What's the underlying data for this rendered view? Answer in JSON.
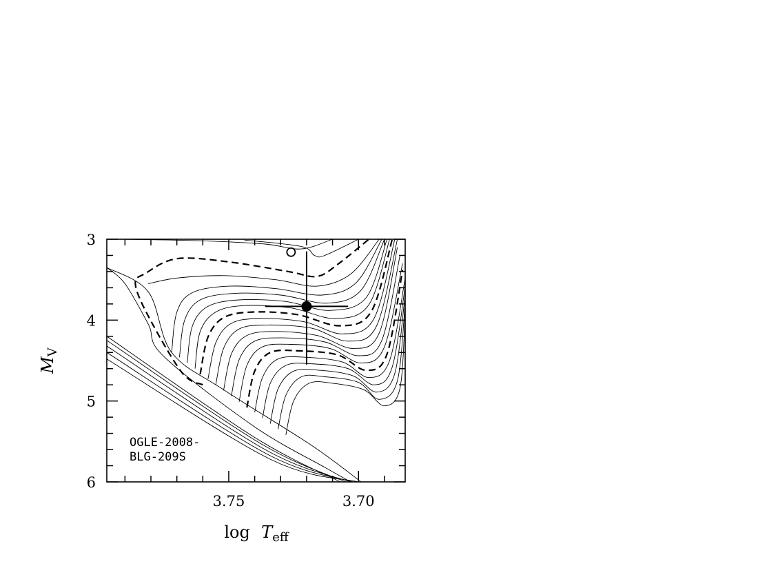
{
  "chart_data": {
    "type": "line",
    "x_axis": {
      "var": "log",
      "symbol": "T",
      "subscript": "eff",
      "lim": [
        3.797,
        3.682
      ],
      "reversed": true,
      "ticks": [
        3.75,
        3.7
      ],
      "tick_labels": [
        "3.75",
        "3.70"
      ]
    },
    "y_axis": {
      "symbol": "M",
      "subscript": "V",
      "lim": [
        3,
        6
      ],
      "inverted": true,
      "ticks": [
        3,
        4,
        5,
        6
      ],
      "tick_labels": [
        "3",
        "4",
        "5",
        "6"
      ]
    },
    "annotation": {
      "line1": "OGLE-2008-",
      "line2": "BLG-209S"
    },
    "solid_isochrones": [
      [
        [
          3.79,
          3.0
        ],
        [
          3.76,
          3.02
        ],
        [
          3.736,
          3.06
        ],
        [
          3.722,
          3.12
        ],
        [
          3.71,
          3.0
        ]
      ],
      [
        [
          3.744,
          3.01
        ],
        [
          3.722,
          3.09
        ],
        [
          3.717,
          3.2
        ],
        [
          3.713,
          3.2
        ],
        [
          3.7,
          3.0
        ]
      ],
      [
        [
          3.781,
          3.55
        ],
        [
          3.77,
          3.48
        ],
        [
          3.752,
          3.45
        ],
        [
          3.732,
          3.5
        ],
        [
          3.716,
          3.58
        ],
        [
          3.703,
          3.43
        ],
        [
          3.692,
          3.0
        ]
      ],
      [
        [
          3.772,
          4.4
        ],
        [
          3.77,
          3.9
        ],
        [
          3.764,
          3.66
        ],
        [
          3.75,
          3.58
        ],
        [
          3.732,
          3.61
        ],
        [
          3.714,
          3.69
        ],
        [
          3.701,
          3.54
        ],
        [
          3.691,
          3.0
        ]
      ],
      [
        [
          3.769,
          4.46
        ],
        [
          3.767,
          4.0
        ],
        [
          3.761,
          3.75
        ],
        [
          3.748,
          3.67
        ],
        [
          3.73,
          3.69
        ],
        [
          3.712,
          3.79
        ],
        [
          3.699,
          3.63
        ],
        [
          3.69,
          3.0
        ]
      ],
      [
        [
          3.766,
          4.53
        ],
        [
          3.764,
          4.07
        ],
        [
          3.758,
          3.83
        ],
        [
          3.746,
          3.75
        ],
        [
          3.728,
          3.77
        ],
        [
          3.711,
          3.88
        ],
        [
          3.697,
          3.72
        ],
        [
          3.689,
          3.0
        ]
      ],
      [
        [
          3.763,
          4.6
        ],
        [
          3.761,
          4.14
        ],
        [
          3.755,
          3.9
        ],
        [
          3.744,
          3.82
        ],
        [
          3.726,
          3.85
        ],
        [
          3.709,
          3.98
        ],
        [
          3.696,
          3.81
        ],
        [
          3.688,
          3.0
        ]
      ],
      [
        [
          3.758,
          4.73
        ],
        [
          3.755,
          4.28
        ],
        [
          3.749,
          4.04
        ],
        [
          3.738,
          3.98
        ],
        [
          3.721,
          4.02
        ],
        [
          3.706,
          4.17
        ],
        [
          3.694,
          3.98
        ],
        [
          3.686,
          3.0
        ]
      ],
      [
        [
          3.755,
          4.8
        ],
        [
          3.752,
          4.35
        ],
        [
          3.746,
          4.11
        ],
        [
          3.735,
          4.06
        ],
        [
          3.718,
          4.1
        ],
        [
          3.704,
          4.26
        ],
        [
          3.693,
          4.07
        ],
        [
          3.685,
          3.0
        ]
      ],
      [
        [
          3.752,
          4.87
        ],
        [
          3.749,
          4.42
        ],
        [
          3.743,
          4.19
        ],
        [
          3.732,
          4.14
        ],
        [
          3.716,
          4.19
        ],
        [
          3.702,
          4.35
        ],
        [
          3.692,
          4.16
        ],
        [
          3.685,
          3.1
        ]
      ],
      [
        [
          3.749,
          4.94
        ],
        [
          3.746,
          4.49
        ],
        [
          3.74,
          4.26
        ],
        [
          3.729,
          4.22
        ],
        [
          3.713,
          4.27
        ],
        [
          3.7,
          4.44
        ],
        [
          3.691,
          4.25
        ],
        [
          3.684,
          3.2
        ]
      ],
      [
        [
          3.746,
          5.01
        ],
        [
          3.743,
          4.56
        ],
        [
          3.737,
          4.33
        ],
        [
          3.726,
          4.3
        ],
        [
          3.711,
          4.35
        ],
        [
          3.699,
          4.53
        ],
        [
          3.69,
          4.33
        ],
        [
          3.683,
          3.3
        ]
      ],
      [
        [
          3.74,
          5.14
        ],
        [
          3.737,
          4.71
        ],
        [
          3.731,
          4.48
        ],
        [
          3.72,
          4.46
        ],
        [
          3.706,
          4.52
        ],
        [
          3.696,
          4.71
        ],
        [
          3.688,
          4.5
        ],
        [
          3.682,
          3.48
        ]
      ],
      [
        [
          3.737,
          5.21
        ],
        [
          3.734,
          4.78
        ],
        [
          3.728,
          4.56
        ],
        [
          3.718,
          4.54
        ],
        [
          3.704,
          4.6
        ],
        [
          3.694,
          4.8
        ],
        [
          3.687,
          4.58
        ],
        [
          3.682,
          3.58
        ]
      ],
      [
        [
          3.734,
          5.28
        ],
        [
          3.731,
          4.85
        ],
        [
          3.725,
          4.63
        ],
        [
          3.715,
          4.62
        ],
        [
          3.702,
          4.69
        ],
        [
          3.693,
          4.89
        ],
        [
          3.686,
          4.66
        ],
        [
          3.682,
          3.68
        ]
      ],
      [
        [
          3.731,
          5.35
        ],
        [
          3.728,
          4.93
        ],
        [
          3.722,
          4.7
        ],
        [
          3.713,
          4.7
        ],
        [
          3.7,
          4.77
        ],
        [
          3.692,
          4.98
        ],
        [
          3.685,
          4.75
        ],
        [
          3.682,
          3.78
        ]
      ],
      [
        [
          3.728,
          5.42
        ],
        [
          3.725,
          5.0
        ],
        [
          3.719,
          4.78
        ],
        [
          3.71,
          4.78
        ],
        [
          3.698,
          4.86
        ],
        [
          3.69,
          5.06
        ],
        [
          3.684,
          4.84
        ],
        [
          3.682,
          3.9
        ]
      ]
    ],
    "dashed_isochrones": [
      [
        [
          3.76,
          4.8
        ],
        [
          3.768,
          4.65
        ],
        [
          3.781,
          3.95
        ],
        [
          3.786,
          3.55
        ],
        [
          3.782,
          3.42
        ],
        [
          3.77,
          3.24
        ],
        [
          3.75,
          3.28
        ],
        [
          3.727,
          3.4
        ],
        [
          3.716,
          3.46
        ],
        [
          3.708,
          3.31
        ],
        [
          3.696,
          3.0
        ]
      ],
      [
        [
          3.761,
          4.67
        ],
        [
          3.758,
          4.21
        ],
        [
          3.752,
          3.97
        ],
        [
          3.741,
          3.9
        ],
        [
          3.724,
          3.93
        ],
        [
          3.707,
          4.07
        ],
        [
          3.695,
          3.89
        ],
        [
          3.687,
          3.0
        ]
      ],
      [
        [
          3.743,
          5.08
        ],
        [
          3.74,
          4.63
        ],
        [
          3.734,
          4.4
        ],
        [
          3.723,
          4.38
        ],
        [
          3.708,
          4.43
        ],
        [
          3.697,
          4.62
        ],
        [
          3.689,
          4.42
        ],
        [
          3.683,
          3.38
        ]
      ]
    ],
    "zams_lines": [
      [
        [
          3.797,
          4.2
        ],
        [
          3.74,
          5.45
        ],
        [
          3.707,
          6.0
        ]
      ],
      [
        [
          3.797,
          4.25
        ],
        [
          3.738,
          5.52
        ],
        [
          3.705,
          6.0
        ]
      ],
      [
        [
          3.797,
          4.32
        ],
        [
          3.736,
          5.6
        ],
        [
          3.703,
          6.0
        ]
      ],
      [
        [
          3.797,
          4.4
        ],
        [
          3.735,
          5.66
        ],
        [
          3.702,
          6.0
        ]
      ],
      [
        [
          3.797,
          4.48
        ],
        [
          3.734,
          5.72
        ],
        [
          3.7,
          6.0
        ]
      ],
      [
        [
          3.797,
          3.35
        ],
        [
          3.79,
          3.55
        ],
        [
          3.781,
          4.05
        ],
        [
          3.775,
          4.45
        ],
        [
          3.74,
          5.32
        ],
        [
          3.713,
          5.82
        ],
        [
          3.703,
          6.0
        ]
      ],
      [
        [
          3.797,
          3.35
        ],
        [
          3.781,
          3.65
        ],
        [
          3.772,
          4.4
        ],
        [
          3.752,
          4.86
        ],
        [
          3.718,
          5.55
        ],
        [
          3.699,
          6.0
        ]
      ]
    ],
    "points": [
      {
        "label": "filled",
        "x": 3.72,
        "y": 3.83,
        "xerr": [
          3.736,
          3.704
        ],
        "yerr": [
          3.15,
          4.55
        ]
      },
      {
        "label": "open",
        "x": 3.726,
        "y": 3.16
      }
    ]
  }
}
